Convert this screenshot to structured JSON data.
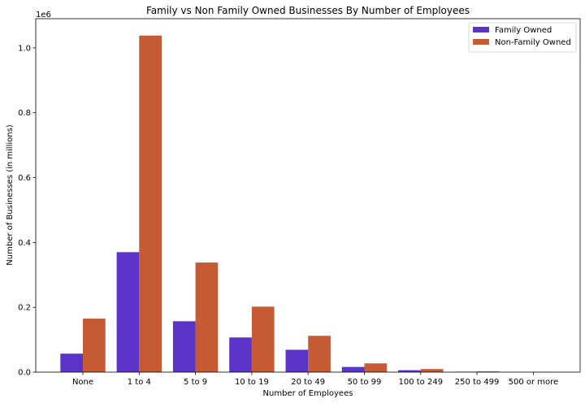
{
  "chart_data": {
    "type": "bar",
    "title": "Family vs Non Family Owned Businesses By Number of Employees",
    "xlabel": "Number of Employees",
    "ylabel": "Number of Businesses (in millions)",
    "y_offset_label": "1e6",
    "categories": [
      "None",
      "1 to 4",
      "5 to 9",
      "10 to 19",
      "20 to 49",
      "50 to 99",
      "100 to 249",
      "250 to 499",
      "500 or more"
    ],
    "series": [
      {
        "name": "Family Owned",
        "color": "#5b35c7",
        "values": [
          57000,
          370000,
          157000,
          107000,
          69000,
          16000,
          6000,
          1200,
          300
        ]
      },
      {
        "name": "Non-Family Owned",
        "color": "#c55a33",
        "values": [
          165000,
          1038000,
          338000,
          202000,
          112000,
          27000,
          9500,
          2300,
          600
        ]
      }
    ],
    "ylim": [
      0,
      1090000
    ],
    "yticks": [
      0,
      200000,
      400000,
      600000,
      800000,
      1000000
    ],
    "ytick_labels": [
      "0.0",
      "0.2",
      "0.4",
      "0.6",
      "0.8",
      "1.0"
    ],
    "legend_position": "top-right",
    "grid": false
  }
}
